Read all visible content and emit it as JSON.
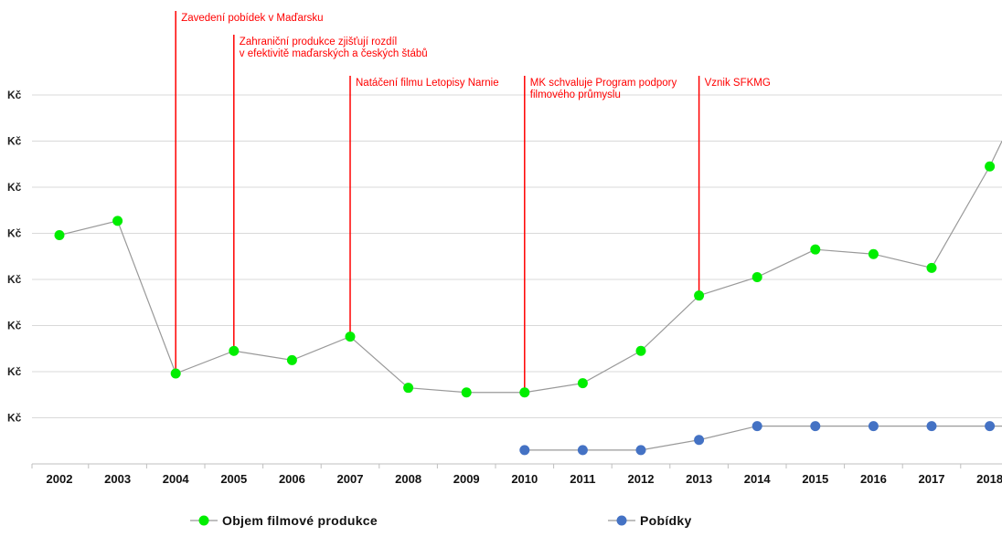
{
  "chart_data": {
    "type": "line",
    "x": [
      "2002",
      "2003",
      "2004",
      "2005",
      "2006",
      "2007",
      "2008",
      "2009",
      "2010",
      "2011",
      "2012",
      "2013",
      "2014",
      "2015",
      "2016",
      "2017",
      "2018"
    ],
    "y_tick_labels": [
      "Kč",
      "Kč",
      "Kč",
      "Kč",
      "Kč",
      "Kč",
      "Kč",
      "Kč"
    ],
    "y_tick_values": [
      1,
      2,
      3,
      4,
      5,
      6,
      7,
      8
    ],
    "ylim": [
      0,
      8.9
    ],
    "grid": true,
    "legend_position": "bottom",
    "series": [
      {
        "name": "Objem filmové produkce",
        "color": "#00ee00",
        "x": [
          "2002",
          "2003",
          "2004",
          "2005",
          "2006",
          "2007",
          "2008",
          "2009",
          "2010",
          "2011",
          "2012",
          "2013",
          "2014",
          "2015",
          "2016",
          "2017",
          "2018"
        ],
        "values": [
          4.96,
          5.27,
          1.96,
          2.45,
          2.25,
          2.76,
          1.65,
          1.55,
          1.55,
          1.75,
          2.45,
          3.65,
          4.05,
          4.65,
          4.55,
          4.25,
          6.45
        ]
      },
      {
        "name": "Pobídky",
        "color": "#4472c4",
        "x": [
          "2010",
          "2011",
          "2012",
          "2013",
          "2014",
          "2015",
          "2016",
          "2017",
          "2018"
        ],
        "values": [
          0.3,
          0.3,
          0.3,
          0.52,
          0.82,
          0.82,
          0.82,
          0.82,
          0.82
        ]
      }
    ],
    "annotations": [
      {
        "x": "2004",
        "lines": [
          "Zavedení pobídek v Maďarsku"
        ]
      },
      {
        "x": "2005",
        "lines": [
          "Zahraniční produkce zjišťují rozdíl",
          "v efektivitě maďarských a českých štábů"
        ]
      },
      {
        "x": "2007",
        "lines": [
          "Natáčení filmu Letopisy Narnie"
        ]
      },
      {
        "x": "2010",
        "lines": [
          "MK schvaluje Program podpory",
          "filmového průmyslu"
        ]
      },
      {
        "x": "2013",
        "lines": [
          "Vznik SFKMG"
        ]
      }
    ],
    "annotation_color": "#ff0000"
  }
}
